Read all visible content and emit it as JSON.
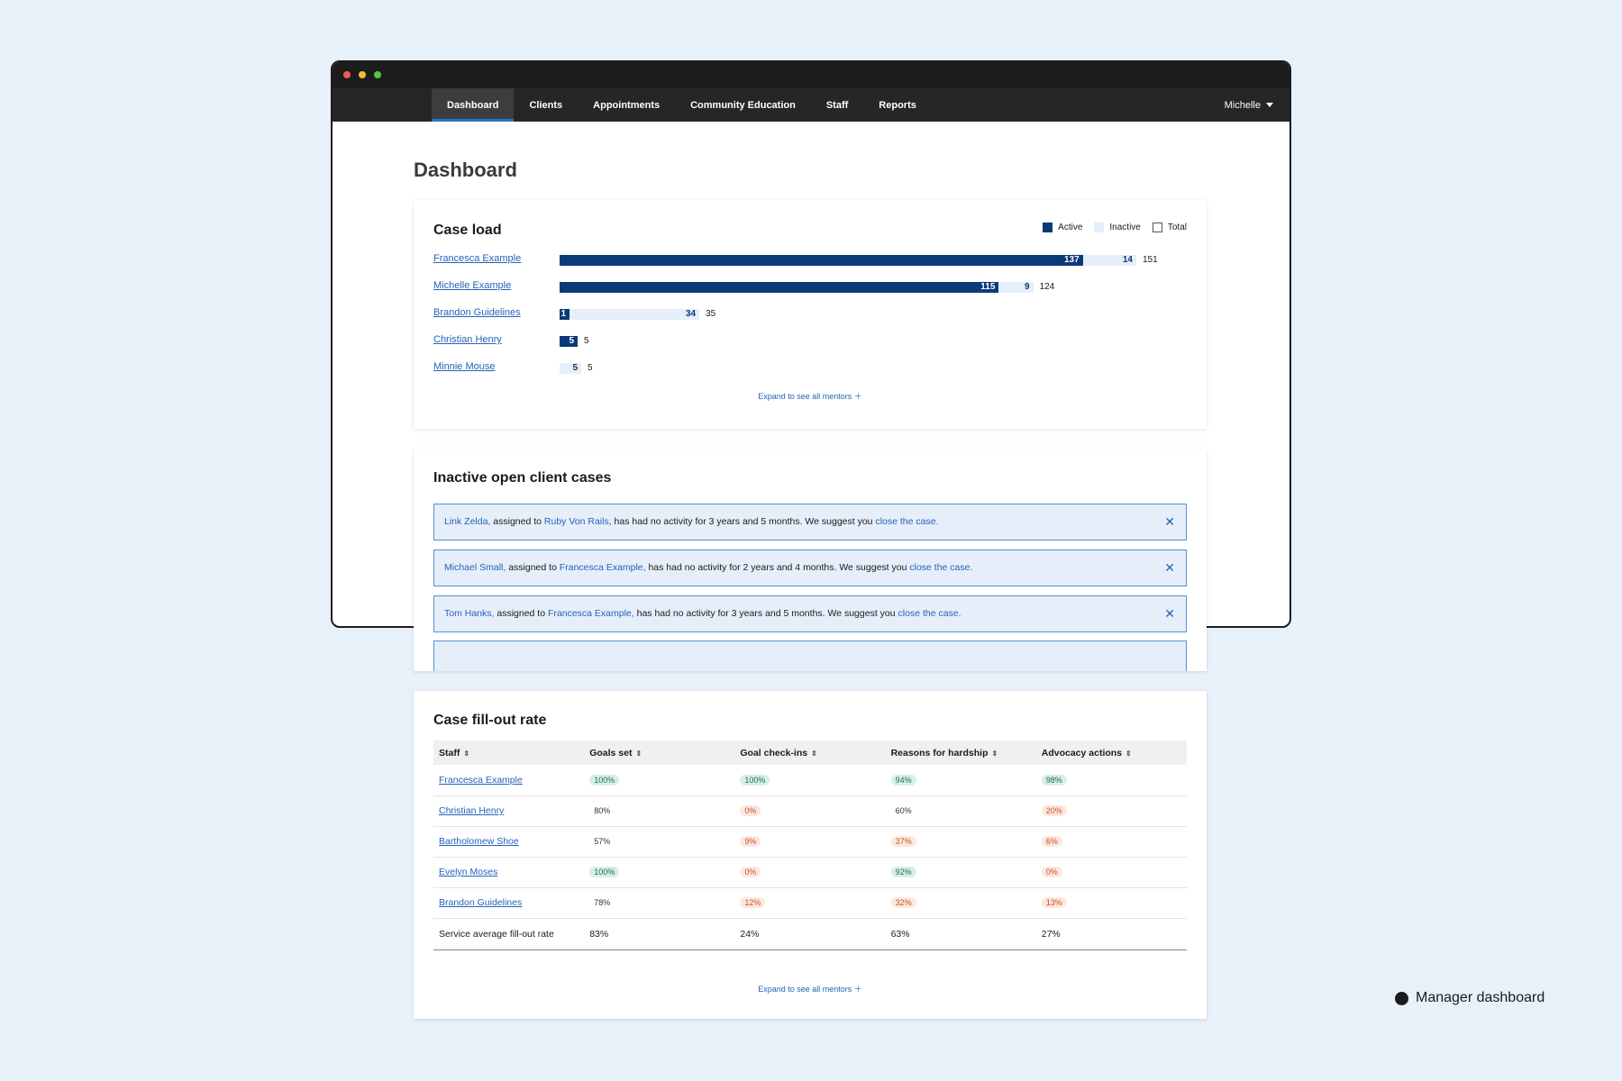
{
  "nav": {
    "tabs": [
      "Dashboard",
      "Clients",
      "Appointments",
      "Community Education",
      "Staff",
      "Reports"
    ],
    "active_tab": "Dashboard",
    "user": "Michelle"
  },
  "page_title": "Dashboard",
  "caseload": {
    "title": "Case load",
    "legend": {
      "active": "Active",
      "inactive": "Inactive",
      "total": "Total"
    },
    "expand": "Expand to see all mentors ＋",
    "rows": [
      {
        "name": "Francesca Example",
        "active": 137,
        "inactive": 14,
        "total": 151
      },
      {
        "name": "Michelle Example",
        "active": 115,
        "inactive": 9,
        "total": 124
      },
      {
        "name": "Brandon Guidelines",
        "active": 1,
        "inactive": 34,
        "total": 35
      },
      {
        "name": "Christian Henry",
        "active": 5,
        "inactive": 0,
        "total": 5
      },
      {
        "name": "Minnie Mouse",
        "active": 0,
        "inactive": 5,
        "total": 5
      }
    ]
  },
  "inactive_cases": {
    "title": "Inactive open client cases",
    "alerts": [
      {
        "client": "Link Zelda,",
        "assigned_text": " assigned to ",
        "staff": "Ruby Von Rails,",
        "message": " has had no activity for 3 years and 5 months. We suggest you ",
        "action": "close the case."
      },
      {
        "client": "Michael Small,",
        "assigned_text": " assigned to ",
        "staff": "Francesca Example,",
        "message": " has had no activity for 2 years and 4 months. We suggest you ",
        "action": "close the case."
      },
      {
        "client": "Tom Hanks,",
        "assigned_text": " assigned to ",
        "staff": "Francesca Example,",
        "message": " has had no activity for 3 years and 5 months. We suggest you ",
        "action": "close the case."
      }
    ]
  },
  "fillout": {
    "title": "Case fill-out rate",
    "columns": [
      "Staff",
      "Goals set",
      "Goal check-ins",
      "Reasons for hardship",
      "Advocacy actions"
    ],
    "rows": [
      {
        "staff": "Francesca Example",
        "values": [
          "100%",
          "100%",
          "94%",
          "98%"
        ],
        "status": [
          "good",
          "good",
          "good",
          "good"
        ]
      },
      {
        "staff": "Christian Henry",
        "values": [
          "80%",
          "0%",
          "60%",
          "20%"
        ],
        "status": [
          "plain",
          "bad",
          "plain",
          "bad"
        ]
      },
      {
        "staff": "Bartholomew Shoe",
        "values": [
          "57%",
          "9%",
          "37%",
          "6%"
        ],
        "status": [
          "plain",
          "bad",
          "bad",
          "bad"
        ]
      },
      {
        "staff": "Evelyn Moses",
        "values": [
          "100%",
          "0%",
          "92%",
          "0%"
        ],
        "status": [
          "good",
          "bad",
          "good",
          "bad"
        ]
      },
      {
        "staff": "Brandon Guidelines",
        "values": [
          "78%",
          "12%",
          "32%",
          "13%"
        ],
        "status": [
          "plain",
          "bad",
          "bad",
          "bad"
        ]
      }
    ],
    "average": {
      "label": "Service average fill-out rate",
      "values": [
        "83%",
        "24%",
        "63%",
        "27%"
      ]
    },
    "expand": "Expand to see all mentors ＋"
  },
  "caption": "Manager dashboard",
  "colors": {
    "active_bar": "#0b3a78",
    "inactive_bar": "#e6eef9",
    "link": "#2662b8",
    "good": "#d6efe9",
    "bad": "#fde8de"
  }
}
